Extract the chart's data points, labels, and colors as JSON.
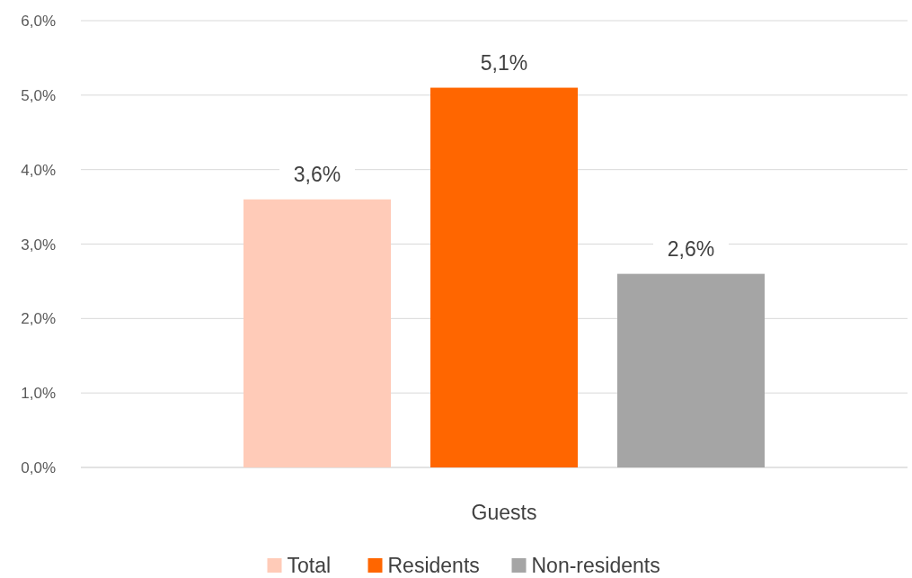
{
  "chart_data": {
    "type": "bar",
    "categories": [
      "Guests"
    ],
    "series": [
      {
        "name": "Total",
        "color": "#ffcbb8",
        "values": [
          3.6
        ],
        "value_labels": [
          "3,6%"
        ]
      },
      {
        "name": "Residents",
        "color": "#ff6600",
        "values": [
          5.1
        ],
        "value_labels": [
          "5,1%"
        ]
      },
      {
        "name": "Non-residents",
        "color": "#a5a5a5",
        "values": [
          2.6
        ],
        "value_labels": [
          "2,6%"
        ]
      }
    ],
    "ylim": [
      0,
      6
    ],
    "yticks": [
      {
        "value": 0,
        "label": "0,0%"
      },
      {
        "value": 1,
        "label": "1,0%"
      },
      {
        "value": 2,
        "label": "2,0%"
      },
      {
        "value": 3,
        "label": "3,0%"
      },
      {
        "value": 4,
        "label": "4,0%"
      },
      {
        "value": 5,
        "label": "5,0%"
      },
      {
        "value": 6,
        "label": "6,0%"
      }
    ],
    "grid": "y",
    "legend": "bottom"
  }
}
